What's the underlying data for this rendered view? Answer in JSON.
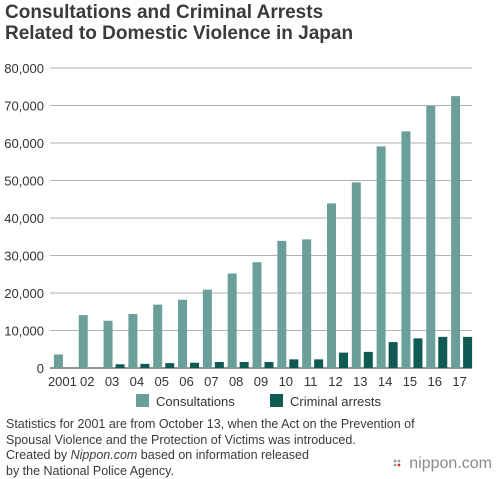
{
  "title_line1": "Consultations and Criminal Arrests",
  "title_line2": "Related to Domestic Violence in Japan",
  "note_line1": "Statistics for 2001 are from October 13, when the Act on the Prevention of",
  "note_line2": "Spousal Violence and the Protection of Victims was introduced.",
  "credit_prefix": "Created by ",
  "credit_source": "Nippon.com",
  "credit_suffix": " based on information released",
  "credit_line2": "by the National Police Agency.",
  "logo_text": "nippon.com",
  "colors": {
    "consultations": "#6b9f9a",
    "arrests": "#0f5a52",
    "grid": "#999999",
    "axis_text": "#333333"
  },
  "chart_data": {
    "type": "bar",
    "title": "Consultations and Criminal Arrests Related to Domestic Violence in Japan",
    "categories": [
      "2001",
      "02",
      "03",
      "04",
      "05",
      "06",
      "07",
      "08",
      "09",
      "10",
      "11",
      "12",
      "13",
      "14",
      "15",
      "16",
      "17"
    ],
    "series": [
      {
        "name": "Consultations",
        "color": "#6b9f9a",
        "values": [
          3600,
          14100,
          12600,
          14400,
          16900,
          18200,
          20900,
          25200,
          28200,
          33900,
          34300,
          43900,
          49500,
          59100,
          63100,
          69900,
          72500
        ]
      },
      {
        "name": "Criminal arrests",
        "color": "#0f5a52",
        "values": [
          0,
          0,
          1000,
          1100,
          1300,
          1400,
          1600,
          1600,
          1600,
          2300,
          2300,
          4100,
          4300,
          6900,
          7900,
          8300,
          8300
        ]
      }
    ],
    "ylim": [
      0,
      80000
    ],
    "yticks": [
      "0",
      "10,000",
      "20,000",
      "30,000",
      "40,000",
      "50,000",
      "60,000",
      "70,000",
      "80,000"
    ],
    "ytick_values": [
      0,
      10000,
      20000,
      30000,
      40000,
      50000,
      60000,
      70000,
      80000
    ],
    "grid": true,
    "legend_position": "bottom"
  }
}
